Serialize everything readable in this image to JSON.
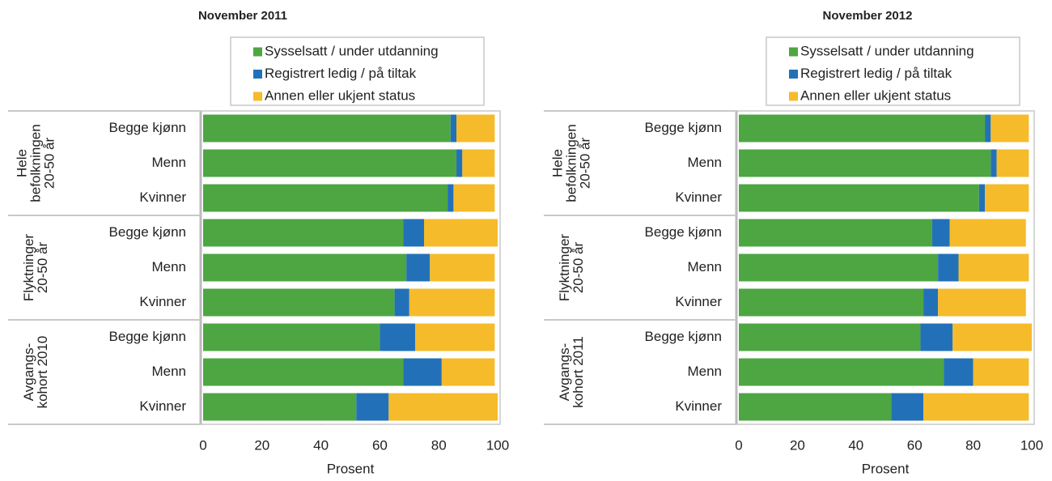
{
  "chart_data": [
    {
      "type": "bar",
      "orientation": "horizontal",
      "stacked": true,
      "title": "November 2011",
      "xlabel": "Prosent",
      "xlim": [
        0,
        100
      ],
      "xticks": [
        0,
        20,
        40,
        60,
        80,
        100
      ],
      "groups": [
        {
          "label": [
            "Hele",
            "befolkningen",
            "20-50 år"
          ]
        },
        {
          "label": [
            "Flyktninger",
            "20-50 år"
          ]
        },
        {
          "label": [
            "Avgangs-",
            "kohort 2010"
          ]
        }
      ],
      "categories": [
        "Begge kjønn",
        "Menn",
        "Kvinner",
        "Begge kjønn",
        "Menn",
        "Kvinner",
        "Begge kjønn",
        "Menn",
        "Kvinner"
      ],
      "series": [
        {
          "name": "Sysselsatt / under utdanning",
          "color": "#4ea642",
          "values": [
            84,
            86,
            83,
            68,
            69,
            65,
            60,
            68,
            52
          ]
        },
        {
          "name": "Registrert ledig / på tiltak",
          "color": "#2271b8",
          "values": [
            2,
            2,
            2,
            7,
            8,
            5,
            12,
            13,
            11
          ]
        },
        {
          "name": "Annen eller ukjent status",
          "color": "#f5bb2a",
          "values": [
            13,
            11,
            14,
            25,
            22,
            29,
            27,
            18,
            37
          ]
        }
      ]
    },
    {
      "type": "bar",
      "orientation": "horizontal",
      "stacked": true,
      "title": "November 2012",
      "xlabel": "Prosent",
      "xlim": [
        0,
        100
      ],
      "xticks": [
        0,
        20,
        40,
        60,
        80,
        100
      ],
      "groups": [
        {
          "label": [
            "Hele",
            "befolkningen",
            "20-50 år"
          ]
        },
        {
          "label": [
            "Flyktninger",
            "20-50 år"
          ]
        },
        {
          "label": [
            "Avgangs-",
            "kohort 2011"
          ]
        }
      ],
      "categories": [
        "Begge kjønn",
        "Menn",
        "Kvinner",
        "Begge kjønn",
        "Menn",
        "Kvinner",
        "Begge kjønn",
        "Menn",
        "Kvinner"
      ],
      "series": [
        {
          "name": "Sysselsatt / under utdanning",
          "color": "#4ea642",
          "values": [
            84,
            86,
            82,
            66,
            68,
            63,
            62,
            70,
            52
          ]
        },
        {
          "name": "Registrert ledig / på tiltak",
          "color": "#2271b8",
          "values": [
            2,
            2,
            2,
            6,
            7,
            5,
            11,
            10,
            11
          ]
        },
        {
          "name": "Annen eller ukjent status",
          "color": "#f5bb2a",
          "values": [
            13,
            11,
            15,
            26,
            24,
            30,
            27,
            19,
            36
          ]
        }
      ]
    }
  ]
}
